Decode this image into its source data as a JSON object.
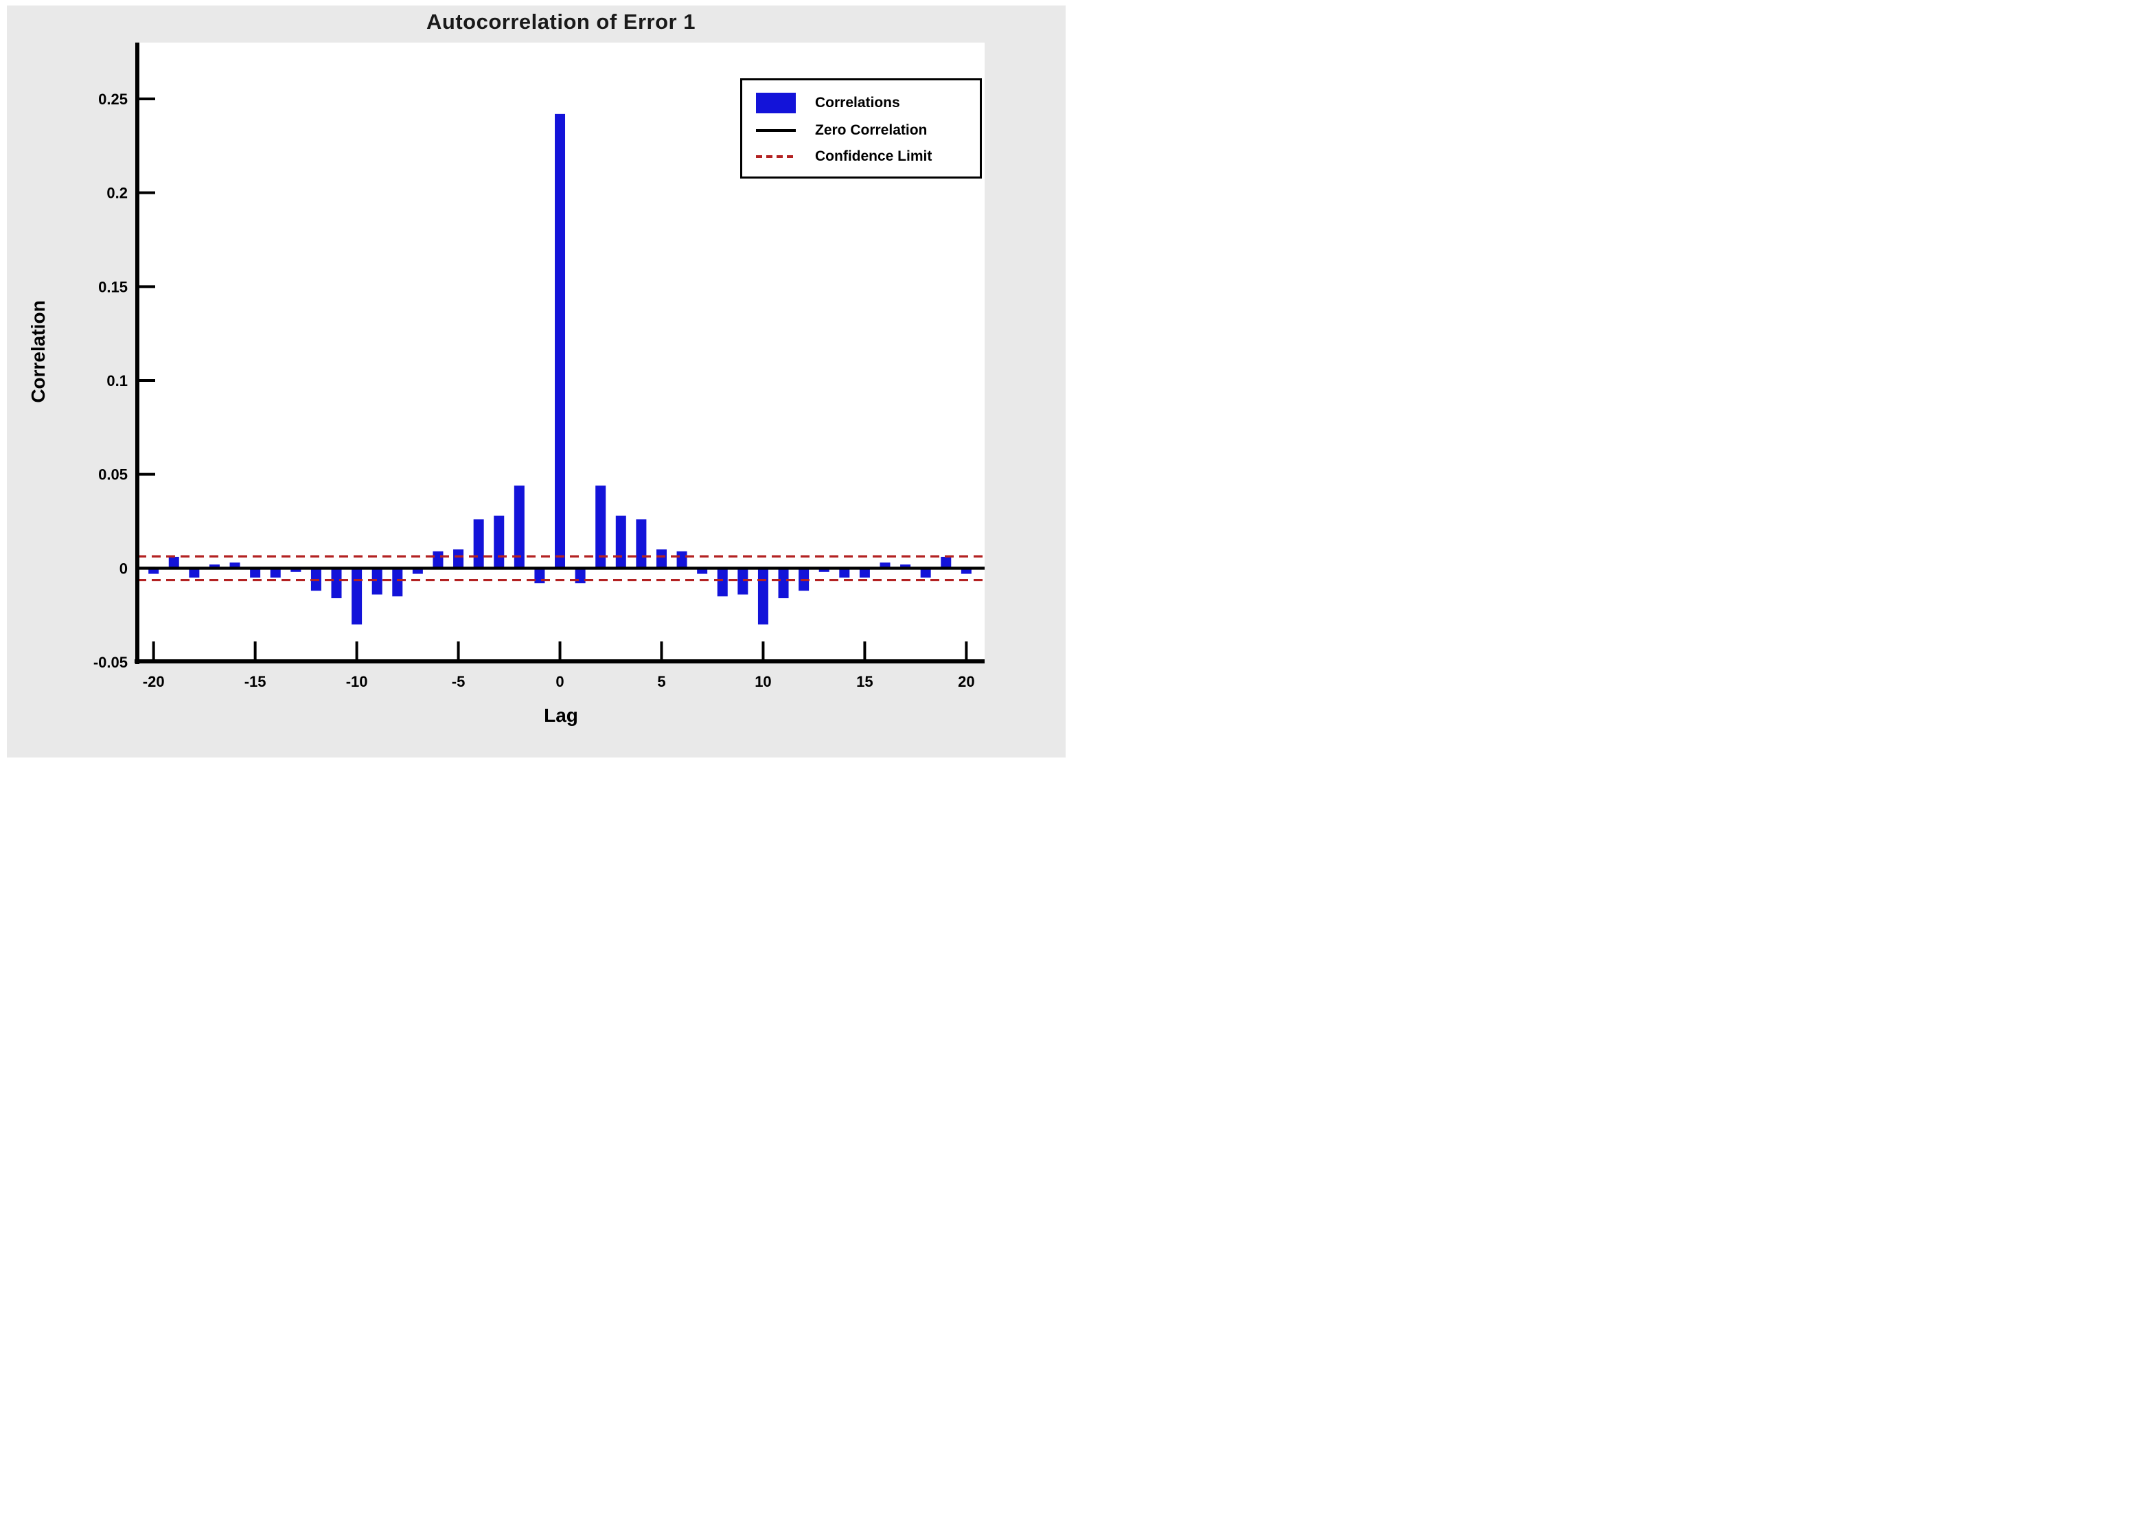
{
  "page": {
    "background": "#ffffff",
    "panel_background": "#e9e9e9"
  },
  "chart_data": {
    "type": "bar",
    "title": "Autocorrelation of Error 1",
    "xlabel": "Lag",
    "ylabel": "Correlation",
    "x": [
      -20,
      -19,
      -18,
      -17,
      -16,
      -15,
      -14,
      -13,
      -12,
      -11,
      -10,
      -9,
      -8,
      -7,
      -6,
      -5,
      -4,
      -3,
      -2,
      -1,
      0,
      1,
      2,
      3,
      4,
      5,
      6,
      7,
      8,
      9,
      10,
      11,
      12,
      13,
      14,
      15,
      16,
      17,
      18,
      19,
      20
    ],
    "values": [
      -0.003,
      0.006,
      -0.005,
      0.002,
      0.003,
      -0.005,
      -0.005,
      -0.002,
      -0.012,
      -0.016,
      -0.03,
      -0.014,
      -0.015,
      -0.003,
      0.009,
      0.01,
      0.026,
      0.028,
      0.044,
      -0.008,
      0.242,
      -0.008,
      0.044,
      0.028,
      0.026,
      0.01,
      0.009,
      -0.003,
      -0.015,
      -0.014,
      -0.03,
      -0.016,
      -0.012,
      -0.002,
      -0.005,
      -0.005,
      0.003,
      0.002,
      -0.005,
      0.006,
      -0.003
    ],
    "zero_line_value": 0,
    "confidence_limit": 0.0063,
    "xlim": [
      -20.8,
      20.9
    ],
    "ylim": [
      -0.05,
      0.28
    ],
    "x_ticks": [
      -20,
      -15,
      -10,
      -5,
      0,
      5,
      10,
      15,
      20
    ],
    "x_tick_labels": [
      "-20",
      "-15",
      "-10",
      "-5",
      "0",
      "5",
      "10",
      "15",
      "20"
    ],
    "y_ticks": [
      0.25,
      0.2,
      0.15,
      0.1,
      0.05,
      0,
      -0.05
    ],
    "y_tick_labels": [
      "0.25",
      "0.2",
      "0.15",
      "0.1",
      "0.05",
      "0",
      "-0.05"
    ],
    "bar_color": "#1313d9",
    "zero_line_color": "#000000",
    "confidence_color": "#b32222",
    "axis_color": "#000000",
    "grid": false,
    "legend_position": "top-right",
    "legend": [
      {
        "label": "Correlations",
        "type": "bar"
      },
      {
        "label": "Zero Correlation",
        "type": "line"
      },
      {
        "label": "Confidence Limit",
        "type": "dashed"
      }
    ]
  }
}
